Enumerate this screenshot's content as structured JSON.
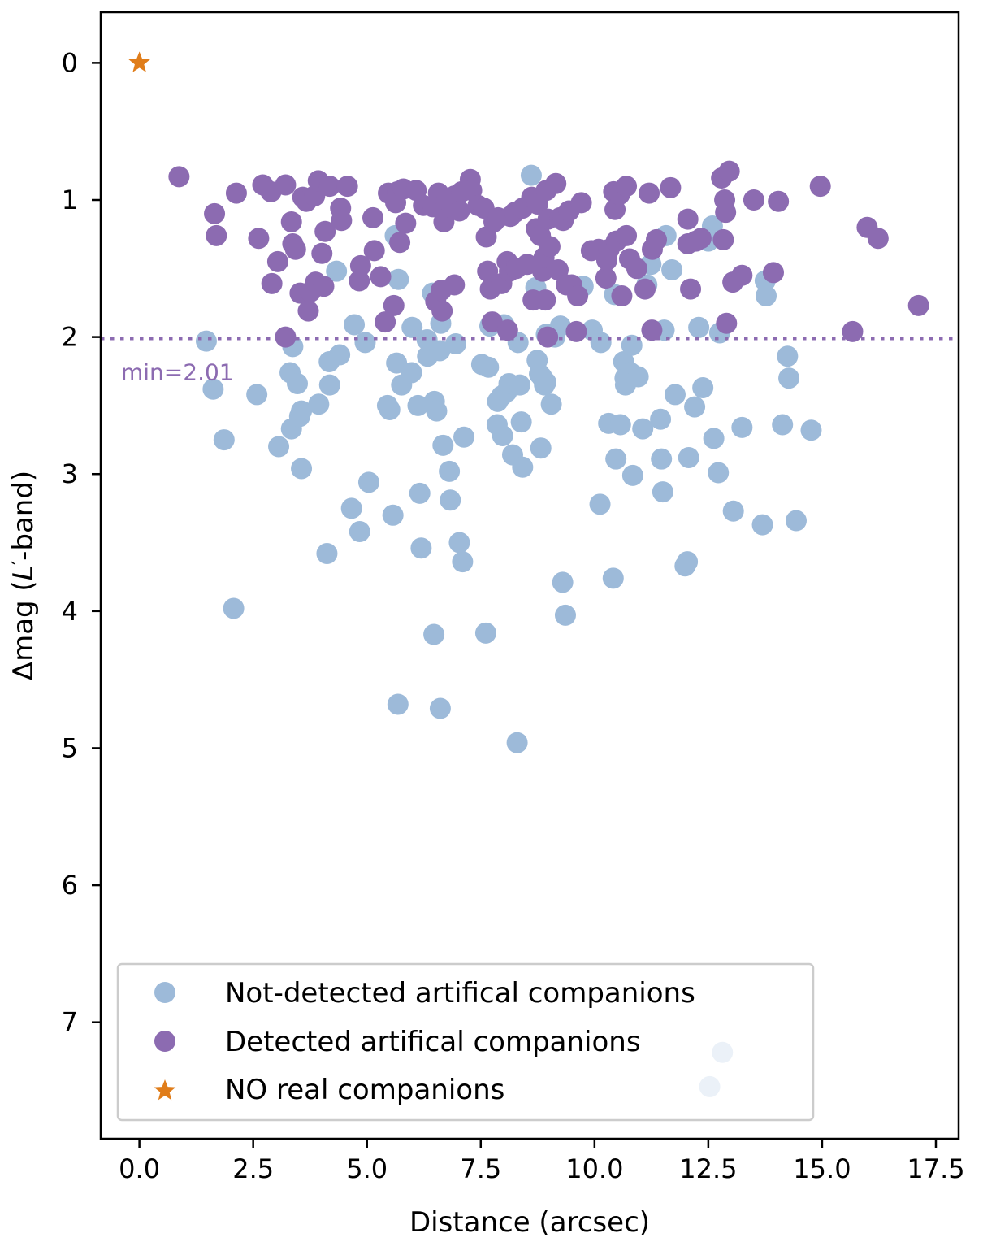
{
  "chart_data": {
    "type": "scatter",
    "title": "",
    "xlabel": "Distance (arcsec)",
    "ylabel_prefix": "Δmag (",
    "ylabel_var": "L",
    "ylabel_prime": "′",
    "ylabel_suffix": "-band)",
    "xlim": [
      -0.85,
      18.0
    ],
    "ylim": [
      7.85,
      -0.37
    ],
    "y_inverted": true,
    "xticks": [
      0.0,
      2.5,
      5.0,
      7.5,
      10.0,
      12.5,
      15.0,
      17.5
    ],
    "xtick_labels": [
      "0.0",
      "2.5",
      "5.0",
      "7.5",
      "10.0",
      "12.5",
      "15.0",
      "17.5"
    ],
    "yticks": [
      0,
      1,
      2,
      3,
      4,
      5,
      6,
      7
    ],
    "ytick_labels": [
      "0",
      "1",
      "2",
      "3",
      "4",
      "5",
      "6",
      "7"
    ],
    "grid": false,
    "legend_position": "lower-left",
    "colors": {
      "not_detected": "#9dbad9",
      "detected": "#8c6bb1",
      "real": "#e07d1a",
      "threshold": "#8c6bb1"
    },
    "threshold": {
      "value": 2.01,
      "label": "min=2.01",
      "style": "dotted"
    },
    "series": [
      {
        "name": "Not-detected artifical companions",
        "marker": "circle",
        "color": "#9dbad9",
        "points": [
          [
            1.47,
            2.03
          ],
          [
            1.62,
            2.38
          ],
          [
            1.86,
            2.75
          ],
          [
            2.07,
            3.98
          ],
          [
            2.58,
            2.42
          ],
          [
            3.06,
            2.8
          ],
          [
            3.31,
            2.26
          ],
          [
            3.34,
            2.67
          ],
          [
            3.37,
            2.07
          ],
          [
            3.47,
            2.34
          ],
          [
            3.52,
            2.58
          ],
          [
            3.56,
            2.54
          ],
          [
            3.56,
            2.96
          ],
          [
            3.94,
            2.49
          ],
          [
            4.12,
            3.58
          ],
          [
            4.17,
            2.18
          ],
          [
            4.18,
            2.35
          ],
          [
            4.33,
            1.52
          ],
          [
            4.4,
            2.13
          ],
          [
            4.66,
            3.25
          ],
          [
            4.72,
            1.91
          ],
          [
            4.84,
            3.42
          ],
          [
            4.96,
            2.04
          ],
          [
            5.04,
            3.06
          ],
          [
            5.45,
            2.5
          ],
          [
            5.5,
            2.53
          ],
          [
            5.57,
            3.3
          ],
          [
            5.62,
            1.26
          ],
          [
            5.65,
            2.19
          ],
          [
            5.68,
            4.68
          ],
          [
            5.69,
            1.58
          ],
          [
            5.76,
            2.35
          ],
          [
            5.98,
            2.26
          ],
          [
            5.99,
            1.93
          ],
          [
            6.12,
            2.5
          ],
          [
            6.16,
            3.14
          ],
          [
            6.19,
            3.54
          ],
          [
            6.32,
            2.02
          ],
          [
            6.33,
            2.14
          ],
          [
            6.44,
            1.68
          ],
          [
            6.47,
            4.17
          ],
          [
            6.48,
            2.47
          ],
          [
            6.53,
            2.54
          ],
          [
            6.6,
            2.1
          ],
          [
            6.61,
            4.71
          ],
          [
            6.62,
            1.9
          ],
          [
            6.67,
            2.79
          ],
          [
            6.81,
            2.98
          ],
          [
            6.83,
            3.19
          ],
          [
            6.95,
            2.05
          ],
          [
            7.03,
            3.5
          ],
          [
            7.1,
            3.64
          ],
          [
            7.13,
            2.73
          ],
          [
            7.52,
            2.2
          ],
          [
            7.61,
            4.16
          ],
          [
            7.67,
            2.22
          ],
          [
            7.7,
            1.92
          ],
          [
            7.86,
            2.64
          ],
          [
            7.87,
            2.47
          ],
          [
            7.96,
            2.43
          ],
          [
            7.98,
            2.72
          ],
          [
            8.01,
            1.91
          ],
          [
            8.07,
            2.4
          ],
          [
            8.12,
            2.34
          ],
          [
            8.2,
            2.86
          ],
          [
            8.3,
            4.96
          ],
          [
            8.32,
            2.04
          ],
          [
            8.36,
            2.35
          ],
          [
            8.39,
            2.62
          ],
          [
            8.42,
            2.95
          ],
          [
            8.61,
            0.82
          ],
          [
            8.71,
            1.64
          ],
          [
            8.74,
            2.17
          ],
          [
            8.79,
            2.27
          ],
          [
            8.82,
            2.81
          ],
          [
            8.84,
            2.29
          ],
          [
            8.9,
            2.35
          ],
          [
            8.93,
            2.33
          ],
          [
            8.94,
            1.98
          ],
          [
            9.05,
            2.49
          ],
          [
            9.13,
            2.0
          ],
          [
            9.25,
            1.92
          ],
          [
            9.3,
            3.79
          ],
          [
            9.36,
            4.03
          ],
          [
            9.75,
            1.63
          ],
          [
            9.95,
            1.95
          ],
          [
            10.12,
            3.22
          ],
          [
            10.14,
            2.04
          ],
          [
            10.31,
            2.63
          ],
          [
            10.41,
            3.76
          ],
          [
            10.44,
            1.69
          ],
          [
            10.47,
            2.89
          ],
          [
            10.57,
            2.64
          ],
          [
            10.64,
            2.18
          ],
          [
            10.67,
            2.3
          ],
          [
            10.68,
            2.35
          ],
          [
            10.79,
            2.26
          ],
          [
            10.82,
            2.06
          ],
          [
            10.84,
            3.01
          ],
          [
            10.96,
            2.29
          ],
          [
            11.06,
            2.67
          ],
          [
            11.15,
            1.62
          ],
          [
            11.24,
            1.47
          ],
          [
            11.45,
            2.6
          ],
          [
            11.47,
            2.89
          ],
          [
            11.5,
            3.13
          ],
          [
            11.53,
            1.95
          ],
          [
            11.57,
            1.26
          ],
          [
            11.7,
            1.51
          ],
          [
            11.77,
            2.42
          ],
          [
            11.99,
            3.67
          ],
          [
            12.04,
            3.64
          ],
          [
            12.07,
            2.88
          ],
          [
            12.2,
            2.51
          ],
          [
            12.29,
            1.93
          ],
          [
            12.38,
            2.37
          ],
          [
            12.5,
            1.3
          ],
          [
            12.53,
            7.47
          ],
          [
            12.59,
            1.19
          ],
          [
            12.62,
            2.74
          ],
          [
            12.72,
            2.99
          ],
          [
            12.75,
            1.97
          ],
          [
            12.81,
            7.22
          ],
          [
            13.05,
            3.27
          ],
          [
            13.24,
            2.66
          ],
          [
            13.69,
            3.37
          ],
          [
            13.75,
            1.59
          ],
          [
            13.77,
            1.7
          ],
          [
            14.13,
            2.64
          ],
          [
            14.24,
            2.14
          ],
          [
            14.27,
            2.3
          ],
          [
            14.43,
            3.34
          ],
          [
            14.76,
            2.68
          ]
        ]
      },
      {
        "name": "Detected artifical companions",
        "marker": "circle",
        "color": "#8c6bb1",
        "points": [
          [
            0.87,
            0.83
          ],
          [
            1.65,
            1.1
          ],
          [
            1.69,
            1.26
          ],
          [
            2.13,
            0.95
          ],
          [
            2.62,
            1.28
          ],
          [
            2.71,
            0.89
          ],
          [
            2.89,
            0.94
          ],
          [
            2.91,
            1.61
          ],
          [
            3.04,
            1.45
          ],
          [
            3.21,
            0.89
          ],
          [
            3.21,
            2.0
          ],
          [
            3.34,
            1.16
          ],
          [
            3.37,
            1.32
          ],
          [
            3.43,
            1.36
          ],
          [
            3.53,
            1.68
          ],
          [
            3.59,
            0.98
          ],
          [
            3.67,
            1.01
          ],
          [
            3.71,
            1.81
          ],
          [
            3.76,
            1.67
          ],
          [
            3.85,
            0.97
          ],
          [
            3.87,
            1.6
          ],
          [
            3.93,
            0.86
          ],
          [
            4.01,
            1.39
          ],
          [
            4.05,
            1.63
          ],
          [
            4.08,
            1.23
          ],
          [
            4.18,
            0.9
          ],
          [
            4.42,
            1.06
          ],
          [
            4.44,
            1.15
          ],
          [
            4.57,
            0.9
          ],
          [
            4.83,
            1.59
          ],
          [
            4.86,
            1.48
          ],
          [
            5.13,
            1.13
          ],
          [
            5.16,
            1.37
          ],
          [
            5.3,
            1.56
          ],
          [
            5.4,
            1.89
          ],
          [
            5.47,
            0.95
          ],
          [
            5.59,
            1.77
          ],
          [
            5.63,
            1.02
          ],
          [
            5.67,
            0.94
          ],
          [
            5.72,
            1.31
          ],
          [
            5.8,
            0.92
          ],
          [
            5.85,
            1.17
          ],
          [
            6.08,
            0.93
          ],
          [
            6.24,
            1.04
          ],
          [
            6.45,
            1.05
          ],
          [
            6.51,
            1.74
          ],
          [
            6.57,
            0.95
          ],
          [
            6.63,
            1.66
          ],
          [
            6.65,
            1.81
          ],
          [
            6.69,
            1.16
          ],
          [
            6.75,
            1.0
          ],
          [
            6.87,
            1.06
          ],
          [
            6.92,
            1.62
          ],
          [
            6.93,
            0.97
          ],
          [
            7.03,
            1.08
          ],
          [
            7.08,
            0.94
          ],
          [
            7.27,
            0.85
          ],
          [
            7.3,
            0.93
          ],
          [
            7.44,
            1.04
          ],
          [
            7.57,
            1.06
          ],
          [
            7.62,
            1.27
          ],
          [
            7.65,
            1.52
          ],
          [
            7.71,
            1.65
          ],
          [
            7.75,
            1.89
          ],
          [
            7.79,
            1.16
          ],
          [
            7.88,
            1.13
          ],
          [
            7.96,
            1.61
          ],
          [
            8.08,
            1.45
          ],
          [
            8.09,
            1.95
          ],
          [
            8.13,
            1.52
          ],
          [
            8.15,
            1.12
          ],
          [
            8.25,
            1.09
          ],
          [
            8.28,
            1.5
          ],
          [
            8.42,
            1.06
          ],
          [
            8.52,
            1.47
          ],
          [
            8.62,
            0.98
          ],
          [
            8.65,
            1.73
          ],
          [
            8.72,
            1.21
          ],
          [
            8.75,
            1.03
          ],
          [
            8.81,
            1.26
          ],
          [
            8.86,
            1.52
          ],
          [
            8.89,
            1.42
          ],
          [
            8.92,
            1.73
          ],
          [
            8.94,
            0.93
          ],
          [
            8.97,
            2.0
          ],
          [
            8.98,
            1.14
          ],
          [
            9.02,
            1.34
          ],
          [
            9.15,
            0.88
          ],
          [
            9.2,
            1.51
          ],
          [
            9.24,
            1.13
          ],
          [
            9.31,
            1.15
          ],
          [
            9.38,
            1.62
          ],
          [
            9.44,
            1.08
          ],
          [
            9.5,
            1.62
          ],
          [
            9.6,
            1.96
          ],
          [
            9.63,
            1.7
          ],
          [
            9.71,
            1.02
          ],
          [
            9.93,
            1.37
          ],
          [
            10.09,
            1.36
          ],
          [
            10.25,
            1.57
          ],
          [
            10.27,
            1.44
          ],
          [
            10.32,
            1.36
          ],
          [
            10.42,
            0.94
          ],
          [
            10.45,
            1.07
          ],
          [
            10.48,
            1.3
          ],
          [
            10.55,
            0.96
          ],
          [
            10.6,
            1.7
          ],
          [
            10.7,
            1.26
          ],
          [
            10.7,
            0.9
          ],
          [
            10.77,
            1.43
          ],
          [
            10.93,
            1.5
          ],
          [
            11.11,
            1.65
          ],
          [
            11.2,
            0.95
          ],
          [
            11.26,
            1.95
          ],
          [
            11.27,
            1.36
          ],
          [
            11.36,
            1.29
          ],
          [
            11.67,
            0.91
          ],
          [
            12.05,
            1.32
          ],
          [
            12.05,
            1.14
          ],
          [
            12.11,
            1.65
          ],
          [
            12.23,
            1.3
          ],
          [
            12.34,
            1.28
          ],
          [
            12.79,
            0.84
          ],
          [
            12.83,
            1.29
          ],
          [
            12.86,
            1.0
          ],
          [
            12.88,
            1.09
          ],
          [
            12.9,
            1.9
          ],
          [
            12.96,
            0.79
          ],
          [
            13.04,
            1.6
          ],
          [
            13.24,
            1.55
          ],
          [
            13.5,
            1.0
          ],
          [
            13.93,
            1.53
          ],
          [
            14.04,
            1.01
          ],
          [
            14.96,
            0.9
          ],
          [
            15.67,
            1.96
          ],
          [
            15.99,
            1.2
          ],
          [
            16.23,
            1.28
          ],
          [
            17.12,
            1.77
          ]
        ]
      },
      {
        "name": "NO real companions",
        "marker": "star",
        "color": "#e07d1a",
        "points": [
          [
            0.0,
            0.0
          ]
        ]
      }
    ]
  }
}
